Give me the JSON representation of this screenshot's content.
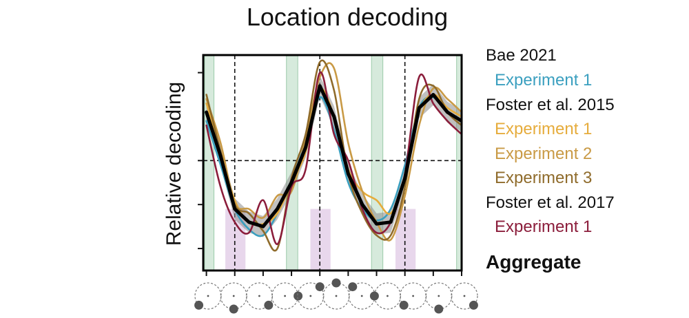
{
  "chart_data": {
    "type": "line",
    "title": "Location decoding",
    "ylabel": "Relative decoding",
    "xlabel": "",
    "x": [
      0,
      22.5,
      45,
      67.5,
      90,
      112.5,
      135,
      157.5,
      180,
      202.5,
      225,
      247.5,
      270,
      292.5,
      315,
      337.5,
      360,
      382.5,
      405
    ],
    "xlim": [
      -5,
      405
    ],
    "ylim": [
      -1.25,
      1.2
    ],
    "reference_lines": {
      "y": [
        0
      ],
      "x": [
        45,
        180,
        315
      ]
    },
    "green_bands": [
      [
        -3,
        12
      ],
      [
        127,
        145
      ],
      [
        262,
        280
      ],
      [
        397,
        410
      ]
    ],
    "purple_bands": [
      [
        30,
        62
      ],
      [
        165,
        197
      ],
      [
        300,
        332
      ]
    ],
    "aggregate_band_halfwidth": 0.12,
    "legend": [
      {
        "text": "Bae 2021",
        "kind": "header",
        "color": "#111111"
      },
      {
        "text": "Experiment 1",
        "kind": "series",
        "series": 0,
        "color": "#3a9fbf"
      },
      {
        "text": "Foster et al. 2015",
        "kind": "header",
        "color": "#111111"
      },
      {
        "text": "Experiment 1",
        "kind": "series",
        "series": 1,
        "color": "#e6ac3c"
      },
      {
        "text": "Experiment 2",
        "kind": "series",
        "series": 2,
        "color": "#c99a45"
      },
      {
        "text": "Experiment 3",
        "kind": "series",
        "series": 3,
        "color": "#8f6b2b"
      },
      {
        "text": "Foster et al. 2017",
        "kind": "header",
        "color": "#111111"
      },
      {
        "text": "Experiment 1",
        "kind": "series",
        "series": 4,
        "color": "#8b1d3b"
      },
      {
        "text": "Aggregate",
        "kind": "aggregate",
        "color": "#000000"
      }
    ],
    "series": [
      {
        "name": "Bae 2021 Experiment 1",
        "color": "#3a9fbf",
        "values": [
          0.45,
          -0.05,
          -0.55,
          -0.78,
          -0.85,
          -0.6,
          -0.22,
          0.2,
          0.72,
          0.35,
          -0.25,
          -0.55,
          -0.68,
          -0.55,
          -0.05,
          0.6,
          0.72,
          0.55,
          0.45
        ]
      },
      {
        "name": "Foster et al. 2015 Experiment 1",
        "color": "#e6ac3c",
        "values": [
          0.65,
          0.1,
          -0.45,
          -0.7,
          -0.72,
          -0.6,
          -0.25,
          0.1,
          0.8,
          0.5,
          -0.1,
          -0.35,
          -0.45,
          -0.6,
          -0.2,
          0.55,
          0.75,
          0.6,
          0.5
        ]
      },
      {
        "name": "Foster et al. 2015 Experiment 2",
        "color": "#c99a45",
        "values": [
          0.7,
          0.2,
          -0.48,
          -0.55,
          -0.65,
          -0.4,
          -0.35,
          0.25,
          0.95,
          1.05,
          0.2,
          -0.35,
          -0.7,
          -0.9,
          -0.4,
          0.4,
          0.82,
          0.7,
          0.55
        ]
      },
      {
        "name": "Foster et al. 2015 Experiment 3",
        "color": "#8f6b2b",
        "values": [
          0.75,
          0.1,
          -0.5,
          -0.6,
          -0.8,
          -1.0,
          -0.2,
          0.3,
          1.12,
          0.8,
          -0.15,
          -0.6,
          -0.85,
          -0.85,
          -0.3,
          0.7,
          0.85,
          0.55,
          0.4
        ]
      },
      {
        "name": "Foster et al. 2017 Experiment 1",
        "color": "#8b1d3b",
        "values": [
          0.4,
          -0.3,
          -0.7,
          -0.82,
          -0.45,
          -0.95,
          -0.3,
          -0.1,
          1.0,
          0.3,
          0.0,
          -0.55,
          -0.82,
          -0.7,
          -0.15,
          0.95,
          0.65,
          0.45,
          0.3
        ]
      },
      {
        "name": "Aggregate",
        "color": "#000000",
        "values": [
          0.55,
          0.05,
          -0.55,
          -0.7,
          -0.75,
          -0.55,
          -0.25,
          0.15,
          0.85,
          0.5,
          -0.15,
          -0.5,
          -0.72,
          -0.7,
          -0.2,
          0.6,
          0.75,
          0.55,
          0.45
        ]
      }
    ],
    "stimulus_positions_deg": [
      225,
      270,
      315,
      0,
      45,
      90,
      135,
      180,
      225,
      270,
      315
    ]
  }
}
